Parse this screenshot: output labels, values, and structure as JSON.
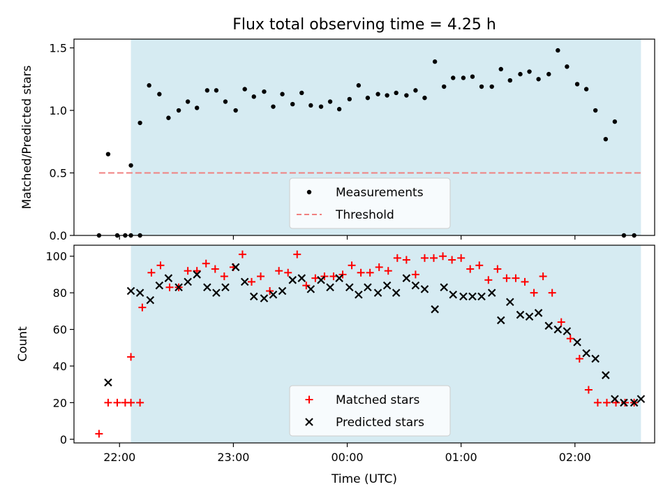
{
  "title": "Flux total observing time = 4.25 h",
  "xlabel": "Time (UTC)",
  "xticks": [
    {
      "t": -0.1,
      "label": "22:00"
    },
    {
      "t": 0.9,
      "label": "23:00"
    },
    {
      "t": 1.9,
      "label": "00:00"
    },
    {
      "t": 2.9,
      "label": "01:00"
    },
    {
      "t": 3.9,
      "label": "02:00"
    }
  ],
  "highlight_color": "#add8e6",
  "chart_data": [
    {
      "type": "scatter",
      "ylabel": "Matched/Predicted stars",
      "ylim": [
        0,
        1.57
      ],
      "yticks": [
        0,
        0.5,
        1.0,
        1.5
      ],
      "ytick_labels": [
        "0.0",
        "0.5",
        "1.0",
        "1.5"
      ],
      "xlim": [
        -0.5,
        4.6
      ],
      "highlight_span": [
        0,
        4.48
      ],
      "legend_loc": "lower center",
      "threshold": {
        "name": "Threshold",
        "value": 0.5,
        "x": [
          -0.28,
          4.48
        ],
        "color": "#f08080"
      },
      "series": [
        {
          "name": "Measurements",
          "color": "#000000",
          "marker": "dot",
          "x": [
            -0.28,
            -0.2,
            -0.12,
            -0.05,
            0.0,
            0.08,
            0.0,
            0.08,
            0.16,
            0.25,
            0.33,
            0.42,
            0.5,
            0.58,
            0.67,
            0.75,
            0.83,
            0.92,
            1.0,
            1.08,
            1.17,
            1.25,
            1.33,
            1.42,
            1.5,
            1.58,
            1.67,
            1.75,
            1.83,
            1.92,
            2.0,
            2.08,
            2.17,
            2.25,
            2.33,
            2.42,
            2.5,
            2.58,
            2.67,
            2.75,
            2.83,
            2.92,
            3.0,
            3.08,
            3.17,
            3.25,
            3.33,
            3.42,
            3.5,
            3.58,
            3.67,
            3.75,
            3.83,
            3.92,
            4.0,
            4.08,
            4.17,
            4.25,
            4.33,
            4.42
          ],
          "y": [
            0.0,
            0.65,
            0.0,
            0.0,
            0.0,
            0.0,
            0.56,
            0.9,
            1.2,
            1.13,
            0.94,
            1.0,
            1.07,
            1.02,
            1.16,
            1.16,
            1.07,
            1.0,
            1.17,
            1.11,
            1.15,
            1.03,
            1.13,
            1.05,
            1.14,
            1.04,
            1.03,
            1.07,
            1.01,
            1.09,
            1.2,
            1.1,
            1.13,
            1.12,
            1.14,
            1.12,
            1.16,
            1.1,
            1.39,
            1.19,
            1.26,
            1.26,
            1.27,
            1.19,
            1.19,
            1.33,
            1.24,
            1.29,
            1.31,
            1.25,
            1.29,
            1.48,
            1.35,
            1.21,
            1.17,
            1.0,
            0.77,
            0.91,
            0.0,
            0.0
          ]
        }
      ]
    },
    {
      "type": "scatter",
      "ylabel": "Count",
      "ylim": [
        -2,
        106
      ],
      "yticks": [
        0,
        20,
        40,
        60,
        80,
        100
      ],
      "ytick_labels": [
        "0",
        "20",
        "40",
        "60",
        "80",
        "100"
      ],
      "xlim": [
        -0.5,
        4.6
      ],
      "highlight_span": [
        0,
        4.48
      ],
      "legend_loc": "lower center",
      "series": [
        {
          "name": "Matched stars",
          "color": "#ff0000",
          "marker": "plus",
          "x": [
            -0.28,
            -0.2,
            -0.12,
            -0.05,
            0.0,
            0.08,
            0.0,
            0.1,
            0.18,
            0.26,
            0.34,
            0.42,
            0.5,
            0.58,
            0.66,
            0.74,
            0.82,
            0.9,
            0.98,
            1.06,
            1.14,
            1.22,
            1.3,
            1.38,
            1.46,
            1.54,
            1.62,
            1.7,
            1.78,
            1.86,
            1.94,
            2.02,
            2.1,
            2.18,
            2.26,
            2.34,
            2.42,
            2.5,
            2.58,
            2.66,
            2.74,
            2.82,
            2.9,
            2.98,
            3.06,
            3.14,
            3.22,
            3.3,
            3.38,
            3.46,
            3.54,
            3.62,
            3.7,
            3.78,
            3.86,
            3.94,
            4.02,
            4.1,
            4.18,
            4.26,
            4.34,
            4.42
          ],
          "y": [
            3,
            20,
            20,
            20,
            20,
            20,
            45,
            72,
            91,
            95,
            83,
            83,
            92,
            92,
            96,
            93,
            89,
            94,
            101,
            86,
            89,
            81,
            92,
            91,
            101,
            84,
            88,
            89,
            89,
            90,
            95,
            91,
            91,
            94,
            92,
            99,
            98,
            90,
            99,
            99,
            100,
            98,
            99,
            93,
            95,
            87,
            93,
            88,
            88,
            86,
            80,
            89,
            80,
            64,
            55,
            44,
            27,
            20,
            20,
            20,
            20,
            20
          ]
        },
        {
          "name": "Predicted stars",
          "color": "#000000",
          "marker": "x",
          "x": [
            -0.2,
            0.0,
            0.08,
            0.17,
            0.25,
            0.33,
            0.42,
            0.5,
            0.58,
            0.67,
            0.75,
            0.83,
            0.92,
            1.0,
            1.08,
            1.17,
            1.25,
            1.33,
            1.42,
            1.5,
            1.58,
            1.67,
            1.75,
            1.83,
            1.92,
            2.0,
            2.08,
            2.17,
            2.25,
            2.33,
            2.42,
            2.5,
            2.58,
            2.67,
            2.75,
            2.83,
            2.92,
            3.0,
            3.08,
            3.17,
            3.25,
            3.33,
            3.42,
            3.5,
            3.58,
            3.67,
            3.75,
            3.83,
            3.92,
            4.0,
            4.08,
            4.17,
            4.25,
            4.33,
            4.42,
            4.48
          ],
          "y": [
            31,
            81,
            80,
            76,
            84,
            88,
            83,
            86,
            90,
            83,
            80,
            83,
            94,
            86,
            78,
            77,
            79,
            81,
            87,
            88,
            82,
            87,
            83,
            88,
            83,
            79,
            83,
            80,
            84,
            80,
            88,
            84,
            82,
            71,
            83,
            79,
            78,
            78,
            78,
            80,
            65,
            75,
            68,
            67,
            69,
            62,
            60,
            59,
            53,
            47,
            44,
            35,
            22,
            20,
            20,
            22
          ]
        }
      ]
    }
  ]
}
